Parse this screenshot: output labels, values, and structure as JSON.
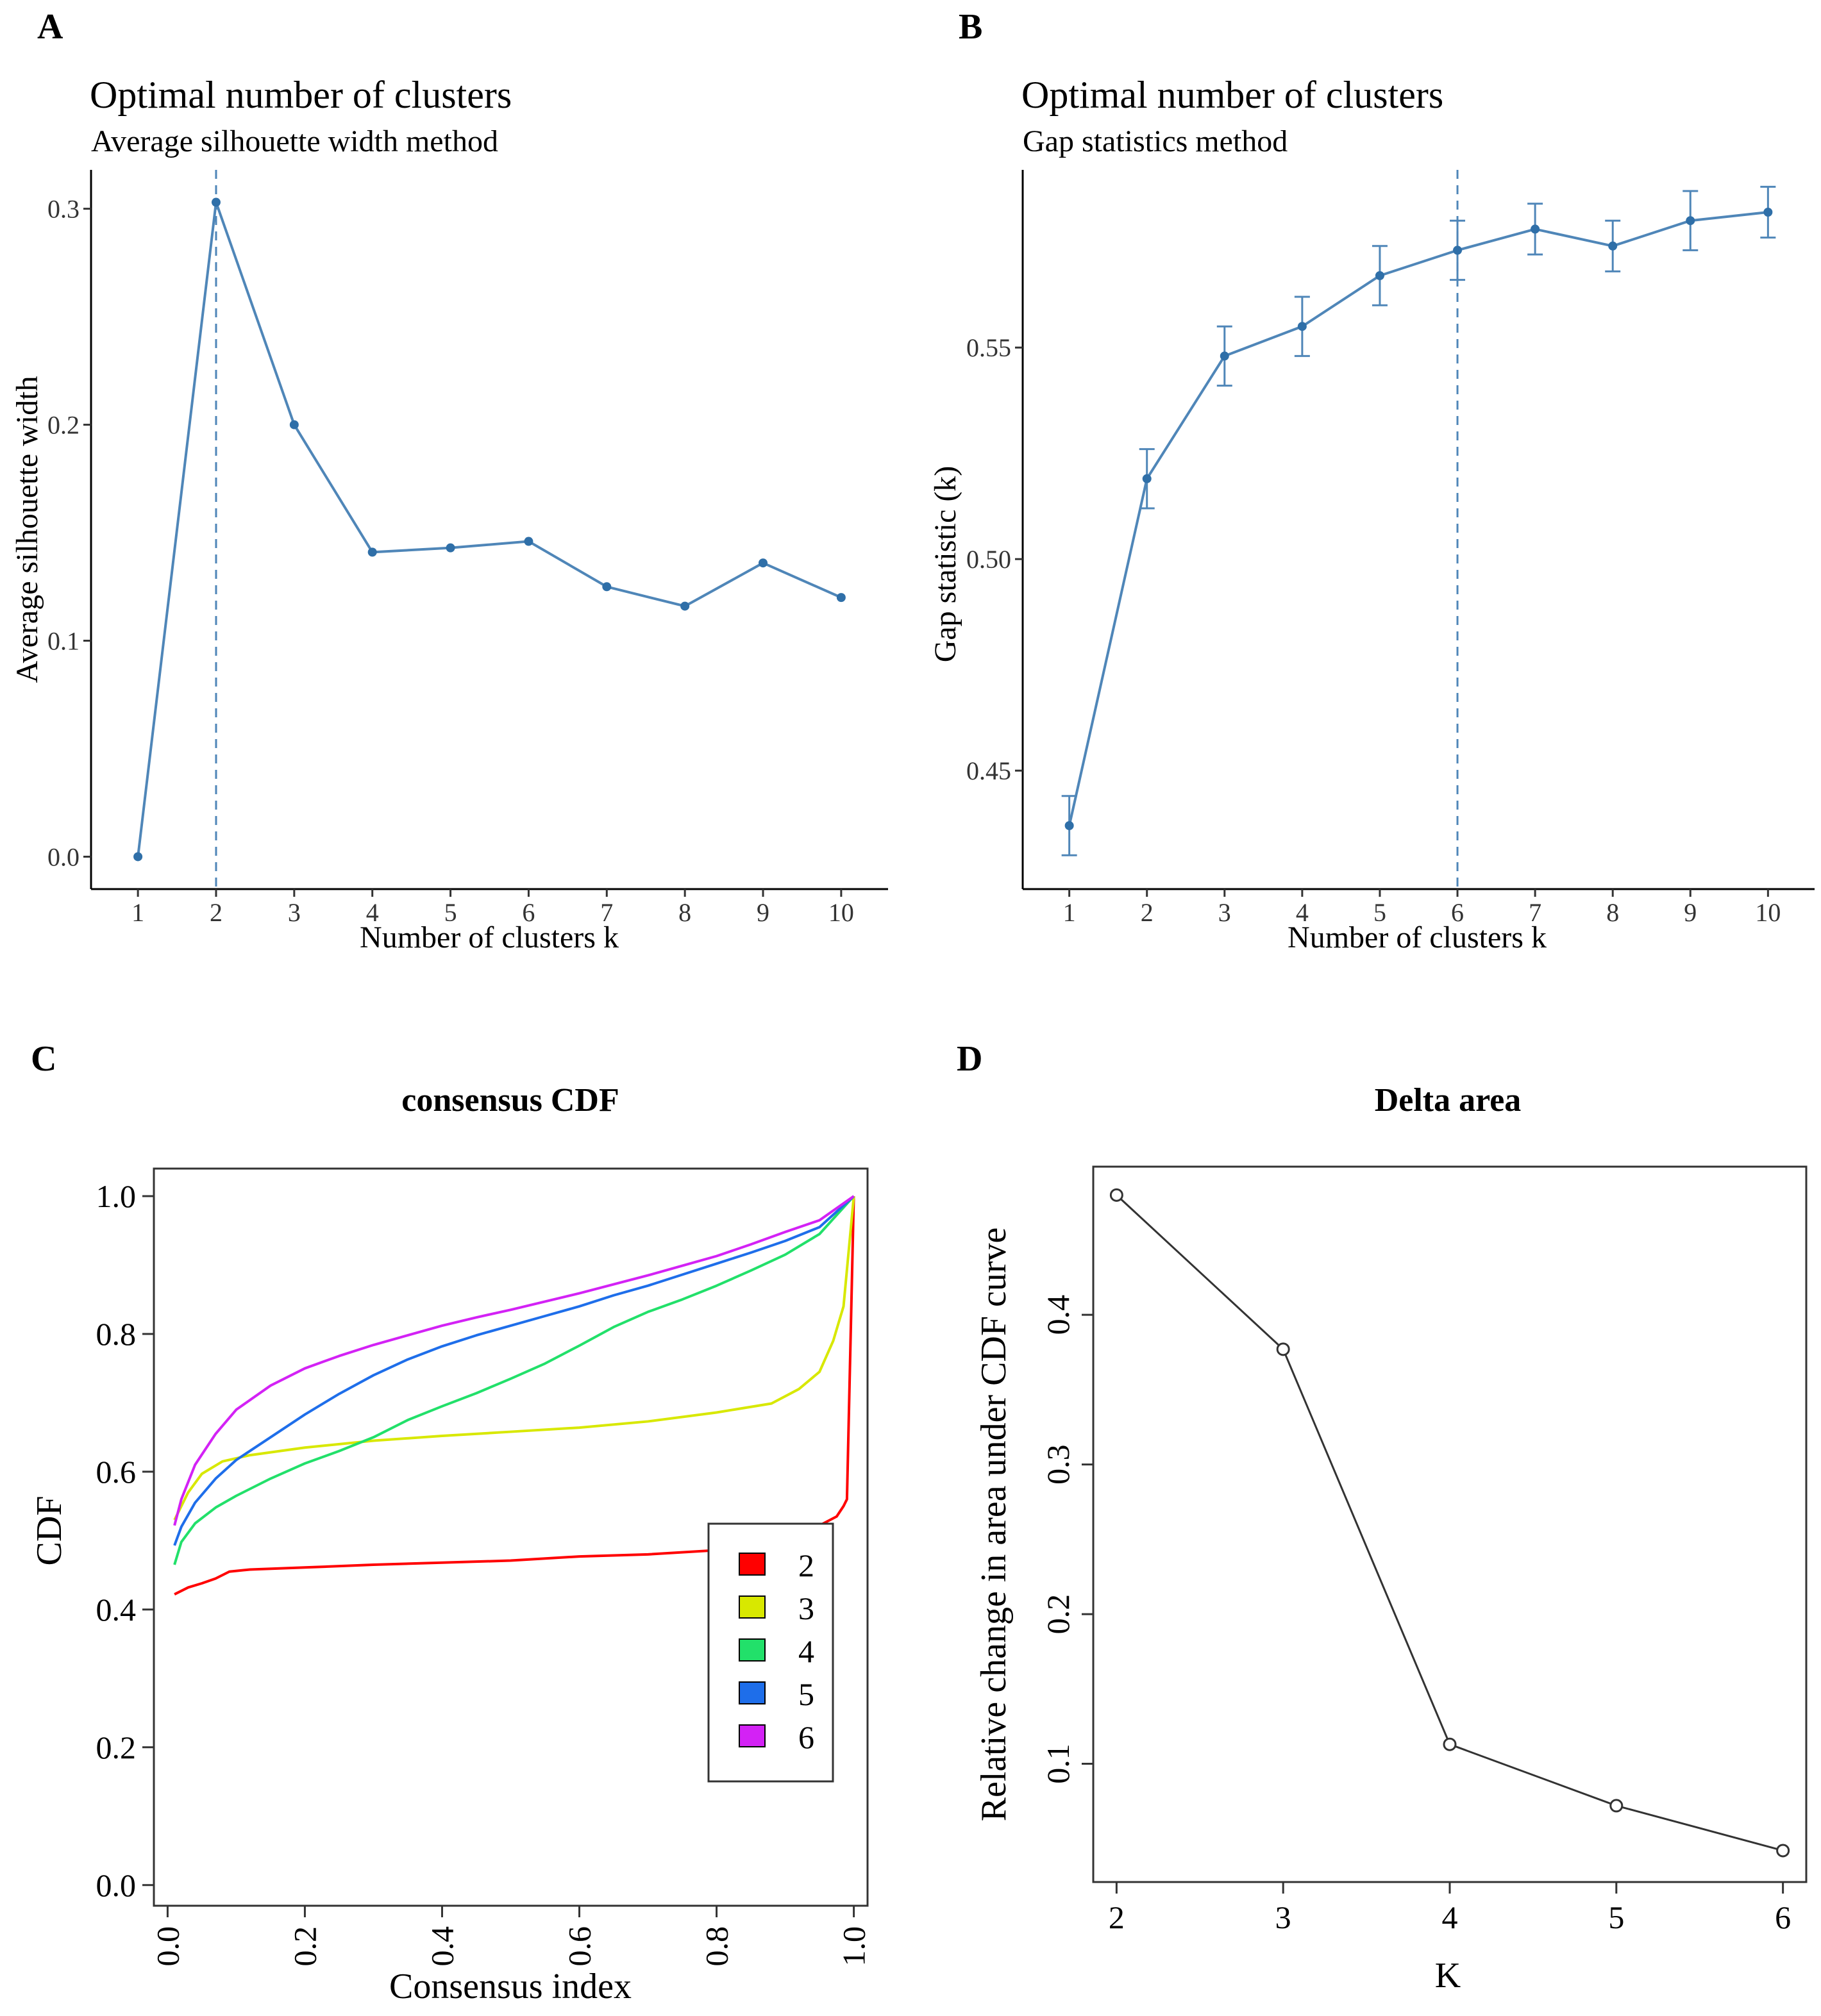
{
  "colors": {
    "steel": "#4F86B8",
    "steel_dark": "#2F6FA8",
    "axis": "#000000",
    "frame": "#333333",
    "line_d": "#333333"
  },
  "chart_data": [
    {
      "id": "A",
      "panel": "A",
      "type": "line",
      "title": "Optimal number of clusters",
      "subtitle": "Average silhouette width method",
      "xlabel": "Number of clusters k",
      "ylabel": "Average silhouette width",
      "x": [
        1,
        2,
        3,
        4,
        5,
        6,
        7,
        8,
        9,
        10
      ],
      "values": [
        0.0,
        0.303,
        0.2,
        0.141,
        0.143,
        0.146,
        0.125,
        0.116,
        0.136,
        0.12
      ],
      "optimal_k": 2,
      "xlim": [
        0.4,
        10.6
      ],
      "ylim": [
        -0.015,
        0.318
      ],
      "yticks": [
        0.0,
        0.1,
        0.2,
        0.3
      ],
      "ytick_labels": [
        "0.0",
        "0.1",
        "0.2",
        "0.3"
      ],
      "xtick_labels": [
        "1",
        "2",
        "3",
        "4",
        "5",
        "6",
        "7",
        "8",
        "9",
        "10"
      ]
    },
    {
      "id": "B",
      "panel": "B",
      "type": "line",
      "title": "Optimal number of clusters",
      "subtitle": "Gap statistics method",
      "xlabel": "Number of clusters k",
      "ylabel": "Gap statistic (k)",
      "x": [
        1,
        2,
        3,
        4,
        5,
        6,
        7,
        8,
        9,
        10
      ],
      "values": [
        0.437,
        0.519,
        0.548,
        0.555,
        0.567,
        0.573,
        0.578,
        0.574,
        0.58,
        0.582
      ],
      "errors": [
        0.007,
        0.007,
        0.007,
        0.007,
        0.007,
        0.007,
        0.006,
        0.006,
        0.007,
        0.006
      ],
      "optimal_k": 6,
      "xlim": [
        0.4,
        10.6
      ],
      "ylim": [
        0.422,
        0.592
      ],
      "yticks": [
        0.45,
        0.5,
        0.55
      ],
      "ytick_labels": [
        "0.45",
        "0.50",
        "0.55"
      ],
      "xtick_labels": [
        "1",
        "2",
        "3",
        "4",
        "5",
        "6",
        "7",
        "8",
        "9",
        "10"
      ]
    },
    {
      "id": "C",
      "panel": "C",
      "type": "line",
      "title": "consensus CDF",
      "xlabel": "Consensus index",
      "ylabel": "CDF",
      "xlim": [
        -0.02,
        1.02
      ],
      "ylim": [
        -0.03,
        1.04
      ],
      "xticks": [
        0.0,
        0.2,
        0.4,
        0.6,
        0.8,
        1.0
      ],
      "xtick_labels": [
        "0.0",
        "0.2",
        "0.4",
        "0.6",
        "0.8",
        "1.0"
      ],
      "yticks": [
        0.0,
        0.2,
        0.4,
        0.6,
        0.8,
        1.0
      ],
      "ytick_labels": [
        "0.0",
        "0.2",
        "0.4",
        "0.6",
        "0.8",
        "1.0"
      ],
      "legend_position": "bottom-right",
      "series": [
        {
          "name": "2",
          "color": "#FF0000",
          "x": [
            0.01,
            0.03,
            0.05,
            0.07,
            0.09,
            0.12,
            0.2,
            0.3,
            0.4,
            0.5,
            0.6,
            0.7,
            0.8,
            0.88,
            0.9,
            0.92,
            0.95,
            0.975,
            0.985,
            0.99,
            1.0
          ],
          "y": [
            0.422,
            0.432,
            0.438,
            0.445,
            0.455,
            0.458,
            0.461,
            0.465,
            0.468,
            0.471,
            0.477,
            0.48,
            0.486,
            0.492,
            0.495,
            0.51,
            0.522,
            0.535,
            0.55,
            0.56,
            1.0
          ]
        },
        {
          "name": "3",
          "color": "#D8E800",
          "x": [
            0.01,
            0.03,
            0.05,
            0.08,
            0.12,
            0.2,
            0.3,
            0.4,
            0.5,
            0.6,
            0.7,
            0.8,
            0.88,
            0.92,
            0.95,
            0.97,
            0.985,
            1.0
          ],
          "y": [
            0.53,
            0.57,
            0.597,
            0.615,
            0.624,
            0.635,
            0.645,
            0.652,
            0.658,
            0.664,
            0.673,
            0.686,
            0.699,
            0.72,
            0.745,
            0.79,
            0.84,
            1.0
          ]
        },
        {
          "name": "4",
          "color": "#22E06A",
          "x": [
            0.01,
            0.02,
            0.04,
            0.07,
            0.1,
            0.15,
            0.2,
            0.25,
            0.3,
            0.35,
            0.4,
            0.45,
            0.5,
            0.55,
            0.6,
            0.65,
            0.7,
            0.75,
            0.8,
            0.85,
            0.9,
            0.95,
            1.0
          ],
          "y": [
            0.465,
            0.498,
            0.525,
            0.548,
            0.565,
            0.59,
            0.612,
            0.63,
            0.65,
            0.675,
            0.695,
            0.714,
            0.735,
            0.757,
            0.783,
            0.81,
            0.832,
            0.85,
            0.87,
            0.892,
            0.915,
            0.945,
            1.0
          ]
        },
        {
          "name": "5",
          "color": "#1E6EEA",
          "x": [
            0.01,
            0.02,
            0.04,
            0.07,
            0.1,
            0.15,
            0.2,
            0.25,
            0.3,
            0.35,
            0.4,
            0.45,
            0.5,
            0.55,
            0.6,
            0.65,
            0.7,
            0.75,
            0.8,
            0.85,
            0.9,
            0.95,
            1.0
          ],
          "y": [
            0.493,
            0.52,
            0.555,
            0.59,
            0.617,
            0.65,
            0.683,
            0.713,
            0.74,
            0.763,
            0.782,
            0.798,
            0.812,
            0.826,
            0.84,
            0.856,
            0.87,
            0.886,
            0.902,
            0.918,
            0.935,
            0.955,
            1.0
          ]
        },
        {
          "name": "6",
          "color": "#D322F5",
          "x": [
            0.01,
            0.02,
            0.04,
            0.07,
            0.1,
            0.15,
            0.2,
            0.25,
            0.3,
            0.35,
            0.4,
            0.45,
            0.5,
            0.55,
            0.6,
            0.65,
            0.7,
            0.75,
            0.8,
            0.85,
            0.9,
            0.95,
            1.0
          ],
          "y": [
            0.522,
            0.56,
            0.61,
            0.655,
            0.69,
            0.725,
            0.75,
            0.768,
            0.784,
            0.798,
            0.812,
            0.824,
            0.835,
            0.847,
            0.859,
            0.872,
            0.885,
            0.899,
            0.913,
            0.93,
            0.948,
            0.965,
            1.0
          ]
        }
      ]
    },
    {
      "id": "D",
      "panel": "D",
      "type": "line",
      "title": "Delta area",
      "xlabel": "K",
      "ylabel": "Relative change in area under CDF curve",
      "x": [
        2,
        3,
        4,
        5,
        6
      ],
      "values": [
        0.48,
        0.377,
        0.113,
        0.072,
        0.042
      ],
      "xlim": [
        1.86,
        6.14
      ],
      "ylim": [
        0.021,
        0.499
      ],
      "yticks": [
        0.1,
        0.2,
        0.3,
        0.4
      ],
      "ytick_labels": [
        "0.1",
        "0.2",
        "0.3",
        "0.4"
      ],
      "xtick_labels": [
        "2",
        "3",
        "4",
        "5",
        "6"
      ]
    }
  ]
}
